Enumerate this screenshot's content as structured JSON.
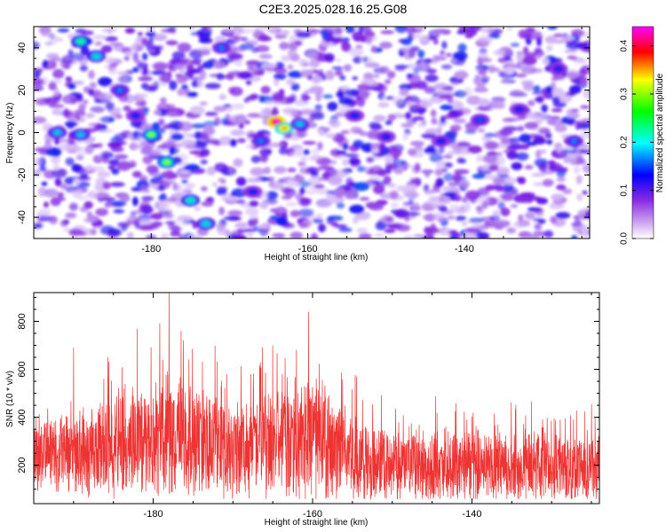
{
  "title": "C2E3.2025.028.16.25.G08",
  "chart_data": [
    {
      "type": "heatmap",
      "xlabel": "Height of straight line (km)",
      "ylabel": "Frequency (Hz)",
      "xlim": [
        -195,
        -124
      ],
      "ylim": [
        -50,
        50
      ],
      "xticks": [
        -180,
        -160,
        -140
      ],
      "yticks": [
        -40,
        -20,
        0,
        20,
        40
      ],
      "colorbar": {
        "label": "Normalized spectral amplitude",
        "range": [
          0,
          0.44
        ],
        "ticks": [
          0,
          0.1,
          0.2,
          0.3,
          0.4
        ],
        "colors": [
          "#ffffff",
          "#8a2be2",
          "#0000ff",
          "#00ffff",
          "#00ff00",
          "#ffff00",
          "#ff0000",
          "#ff00ff"
        ]
      },
      "hotspots": [
        {
          "x": -189,
          "y": 43,
          "v": 0.17
        },
        {
          "x": -187,
          "y": 36,
          "v": 0.15
        },
        {
          "x": -184,
          "y": 20,
          "v": 0.12
        },
        {
          "x": -182,
          "y": 8,
          "v": 0.1
        },
        {
          "x": -192,
          "y": 0,
          "v": 0.14
        },
        {
          "x": -189,
          "y": -1,
          "v": 0.14
        },
        {
          "x": -180,
          "y": -1,
          "v": 0.2
        },
        {
          "x": -178,
          "y": -14,
          "v": 0.2
        },
        {
          "x": -175,
          "y": -32,
          "v": 0.16
        },
        {
          "x": -173,
          "y": -43,
          "v": 0.15
        },
        {
          "x": -171,
          "y": 40,
          "v": 0.12
        },
        {
          "x": -164,
          "y": 5,
          "v": 0.43
        },
        {
          "x": -163,
          "y": 2,
          "v": 0.26
        },
        {
          "x": -161,
          "y": 4,
          "v": 0.14
        },
        {
          "x": -166,
          "y": -4,
          "v": 0.12
        },
        {
          "x": -154,
          "y": 8,
          "v": 0.1
        },
        {
          "x": -150,
          "y": -2,
          "v": 0.1
        },
        {
          "x": -138,
          "y": 6,
          "v": 0.11
        },
        {
          "x": -133,
          "y": 11,
          "v": 0.1
        },
        {
          "x": -128,
          "y": 30,
          "v": 0.1
        },
        {
          "x": -126,
          "y": -4,
          "v": 0.12
        },
        {
          "x": -143,
          "y": -4,
          "v": 0.1
        },
        {
          "x": -167,
          "y": -28,
          "v": 0.1
        }
      ]
    },
    {
      "type": "line",
      "xlabel": "Height of straight line (km)",
      "ylabel": "SNR (10 * v/v)",
      "xlim": [
        -195,
        -124
      ],
      "ylim": [
        40,
        920
      ],
      "xticks": [
        -180,
        -160,
        -140
      ],
      "yticks": [
        200,
        400,
        600,
        800
      ],
      "color": "#ee3333",
      "envelope": [
        {
          "x": -195,
          "base": 240,
          "spread": 190
        },
        {
          "x": -188,
          "base": 260,
          "spread": 210
        },
        {
          "x": -182,
          "base": 300,
          "spread": 260
        },
        {
          "x": -178,
          "base": 320,
          "spread": 300
        },
        {
          "x": -174,
          "base": 310,
          "spread": 280
        },
        {
          "x": -170,
          "base": 270,
          "spread": 230
        },
        {
          "x": -165,
          "base": 290,
          "spread": 250
        },
        {
          "x": -161,
          "base": 330,
          "spread": 300
        },
        {
          "x": -157,
          "base": 260,
          "spread": 230
        },
        {
          "x": -152,
          "base": 210,
          "spread": 180
        },
        {
          "x": -145,
          "base": 200,
          "spread": 170
        },
        {
          "x": -138,
          "base": 195,
          "spread": 165
        },
        {
          "x": -130,
          "base": 190,
          "spread": 160
        },
        {
          "x": -124,
          "base": 190,
          "spread": 160
        }
      ],
      "peaks": [
        {
          "x": -178,
          "y": 920
        },
        {
          "x": -176.5,
          "y": 760
        },
        {
          "x": -160.5,
          "y": 840
        },
        {
          "x": -165,
          "y": 700
        },
        {
          "x": -182,
          "y": 770
        },
        {
          "x": -190,
          "y": 690
        }
      ]
    }
  ]
}
